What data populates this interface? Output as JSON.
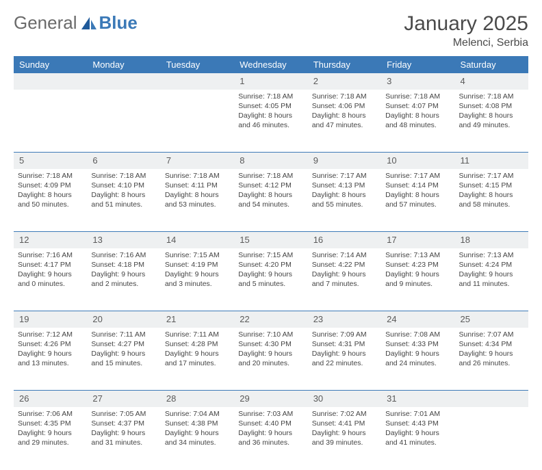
{
  "logo": {
    "general": "General",
    "blue": "Blue"
  },
  "title": "January 2025",
  "location": "Melenci, Serbia",
  "header_bg": "#3b79b7",
  "weekdays": [
    "Sunday",
    "Monday",
    "Tuesday",
    "Wednesday",
    "Thursday",
    "Friday",
    "Saturday"
  ],
  "weeks": [
    {
      "nums": [
        "",
        "",
        "",
        "1",
        "2",
        "3",
        "4"
      ],
      "cells": [
        null,
        null,
        null,
        {
          "sr": "7:18 AM",
          "ss": "4:05 PM",
          "dh": "8",
          "dm": "46"
        },
        {
          "sr": "7:18 AM",
          "ss": "4:06 PM",
          "dh": "8",
          "dm": "47"
        },
        {
          "sr": "7:18 AM",
          "ss": "4:07 PM",
          "dh": "8",
          "dm": "48"
        },
        {
          "sr": "7:18 AM",
          "ss": "4:08 PM",
          "dh": "8",
          "dm": "49"
        }
      ]
    },
    {
      "nums": [
        "5",
        "6",
        "7",
        "8",
        "9",
        "10",
        "11"
      ],
      "cells": [
        {
          "sr": "7:18 AM",
          "ss": "4:09 PM",
          "dh": "8",
          "dm": "50"
        },
        {
          "sr": "7:18 AM",
          "ss": "4:10 PM",
          "dh": "8",
          "dm": "51"
        },
        {
          "sr": "7:18 AM",
          "ss": "4:11 PM",
          "dh": "8",
          "dm": "53"
        },
        {
          "sr": "7:18 AM",
          "ss": "4:12 PM",
          "dh": "8",
          "dm": "54"
        },
        {
          "sr": "7:17 AM",
          "ss": "4:13 PM",
          "dh": "8",
          "dm": "55"
        },
        {
          "sr": "7:17 AM",
          "ss": "4:14 PM",
          "dh": "8",
          "dm": "57"
        },
        {
          "sr": "7:17 AM",
          "ss": "4:15 PM",
          "dh": "8",
          "dm": "58"
        }
      ]
    },
    {
      "nums": [
        "12",
        "13",
        "14",
        "15",
        "16",
        "17",
        "18"
      ],
      "cells": [
        {
          "sr": "7:16 AM",
          "ss": "4:17 PM",
          "dh": "9",
          "dm": "0"
        },
        {
          "sr": "7:16 AM",
          "ss": "4:18 PM",
          "dh": "9",
          "dm": "2"
        },
        {
          "sr": "7:15 AM",
          "ss": "4:19 PM",
          "dh": "9",
          "dm": "3"
        },
        {
          "sr": "7:15 AM",
          "ss": "4:20 PM",
          "dh": "9",
          "dm": "5"
        },
        {
          "sr": "7:14 AM",
          "ss": "4:22 PM",
          "dh": "9",
          "dm": "7"
        },
        {
          "sr": "7:13 AM",
          "ss": "4:23 PM",
          "dh": "9",
          "dm": "9"
        },
        {
          "sr": "7:13 AM",
          "ss": "4:24 PM",
          "dh": "9",
          "dm": "11"
        }
      ]
    },
    {
      "nums": [
        "19",
        "20",
        "21",
        "22",
        "23",
        "24",
        "25"
      ],
      "cells": [
        {
          "sr": "7:12 AM",
          "ss": "4:26 PM",
          "dh": "9",
          "dm": "13"
        },
        {
          "sr": "7:11 AM",
          "ss": "4:27 PM",
          "dh": "9",
          "dm": "15"
        },
        {
          "sr": "7:11 AM",
          "ss": "4:28 PM",
          "dh": "9",
          "dm": "17"
        },
        {
          "sr": "7:10 AM",
          "ss": "4:30 PM",
          "dh": "9",
          "dm": "20"
        },
        {
          "sr": "7:09 AM",
          "ss": "4:31 PM",
          "dh": "9",
          "dm": "22"
        },
        {
          "sr": "7:08 AM",
          "ss": "4:33 PM",
          "dh": "9",
          "dm": "24"
        },
        {
          "sr": "7:07 AM",
          "ss": "4:34 PM",
          "dh": "9",
          "dm": "26"
        }
      ]
    },
    {
      "nums": [
        "26",
        "27",
        "28",
        "29",
        "30",
        "31",
        ""
      ],
      "cells": [
        {
          "sr": "7:06 AM",
          "ss": "4:35 PM",
          "dh": "9",
          "dm": "29"
        },
        {
          "sr": "7:05 AM",
          "ss": "4:37 PM",
          "dh": "9",
          "dm": "31"
        },
        {
          "sr": "7:04 AM",
          "ss": "4:38 PM",
          "dh": "9",
          "dm": "34"
        },
        {
          "sr": "7:03 AM",
          "ss": "4:40 PM",
          "dh": "9",
          "dm": "36"
        },
        {
          "sr": "7:02 AM",
          "ss": "4:41 PM",
          "dh": "9",
          "dm": "39"
        },
        {
          "sr": "7:01 AM",
          "ss": "4:43 PM",
          "dh": "9",
          "dm": "41"
        },
        null
      ]
    }
  ],
  "labels": {
    "sunrise": "Sunrise:",
    "sunset": "Sunset:",
    "daylight": "Daylight:",
    "hours": "hours",
    "and": "and",
    "minutes": "minutes."
  }
}
